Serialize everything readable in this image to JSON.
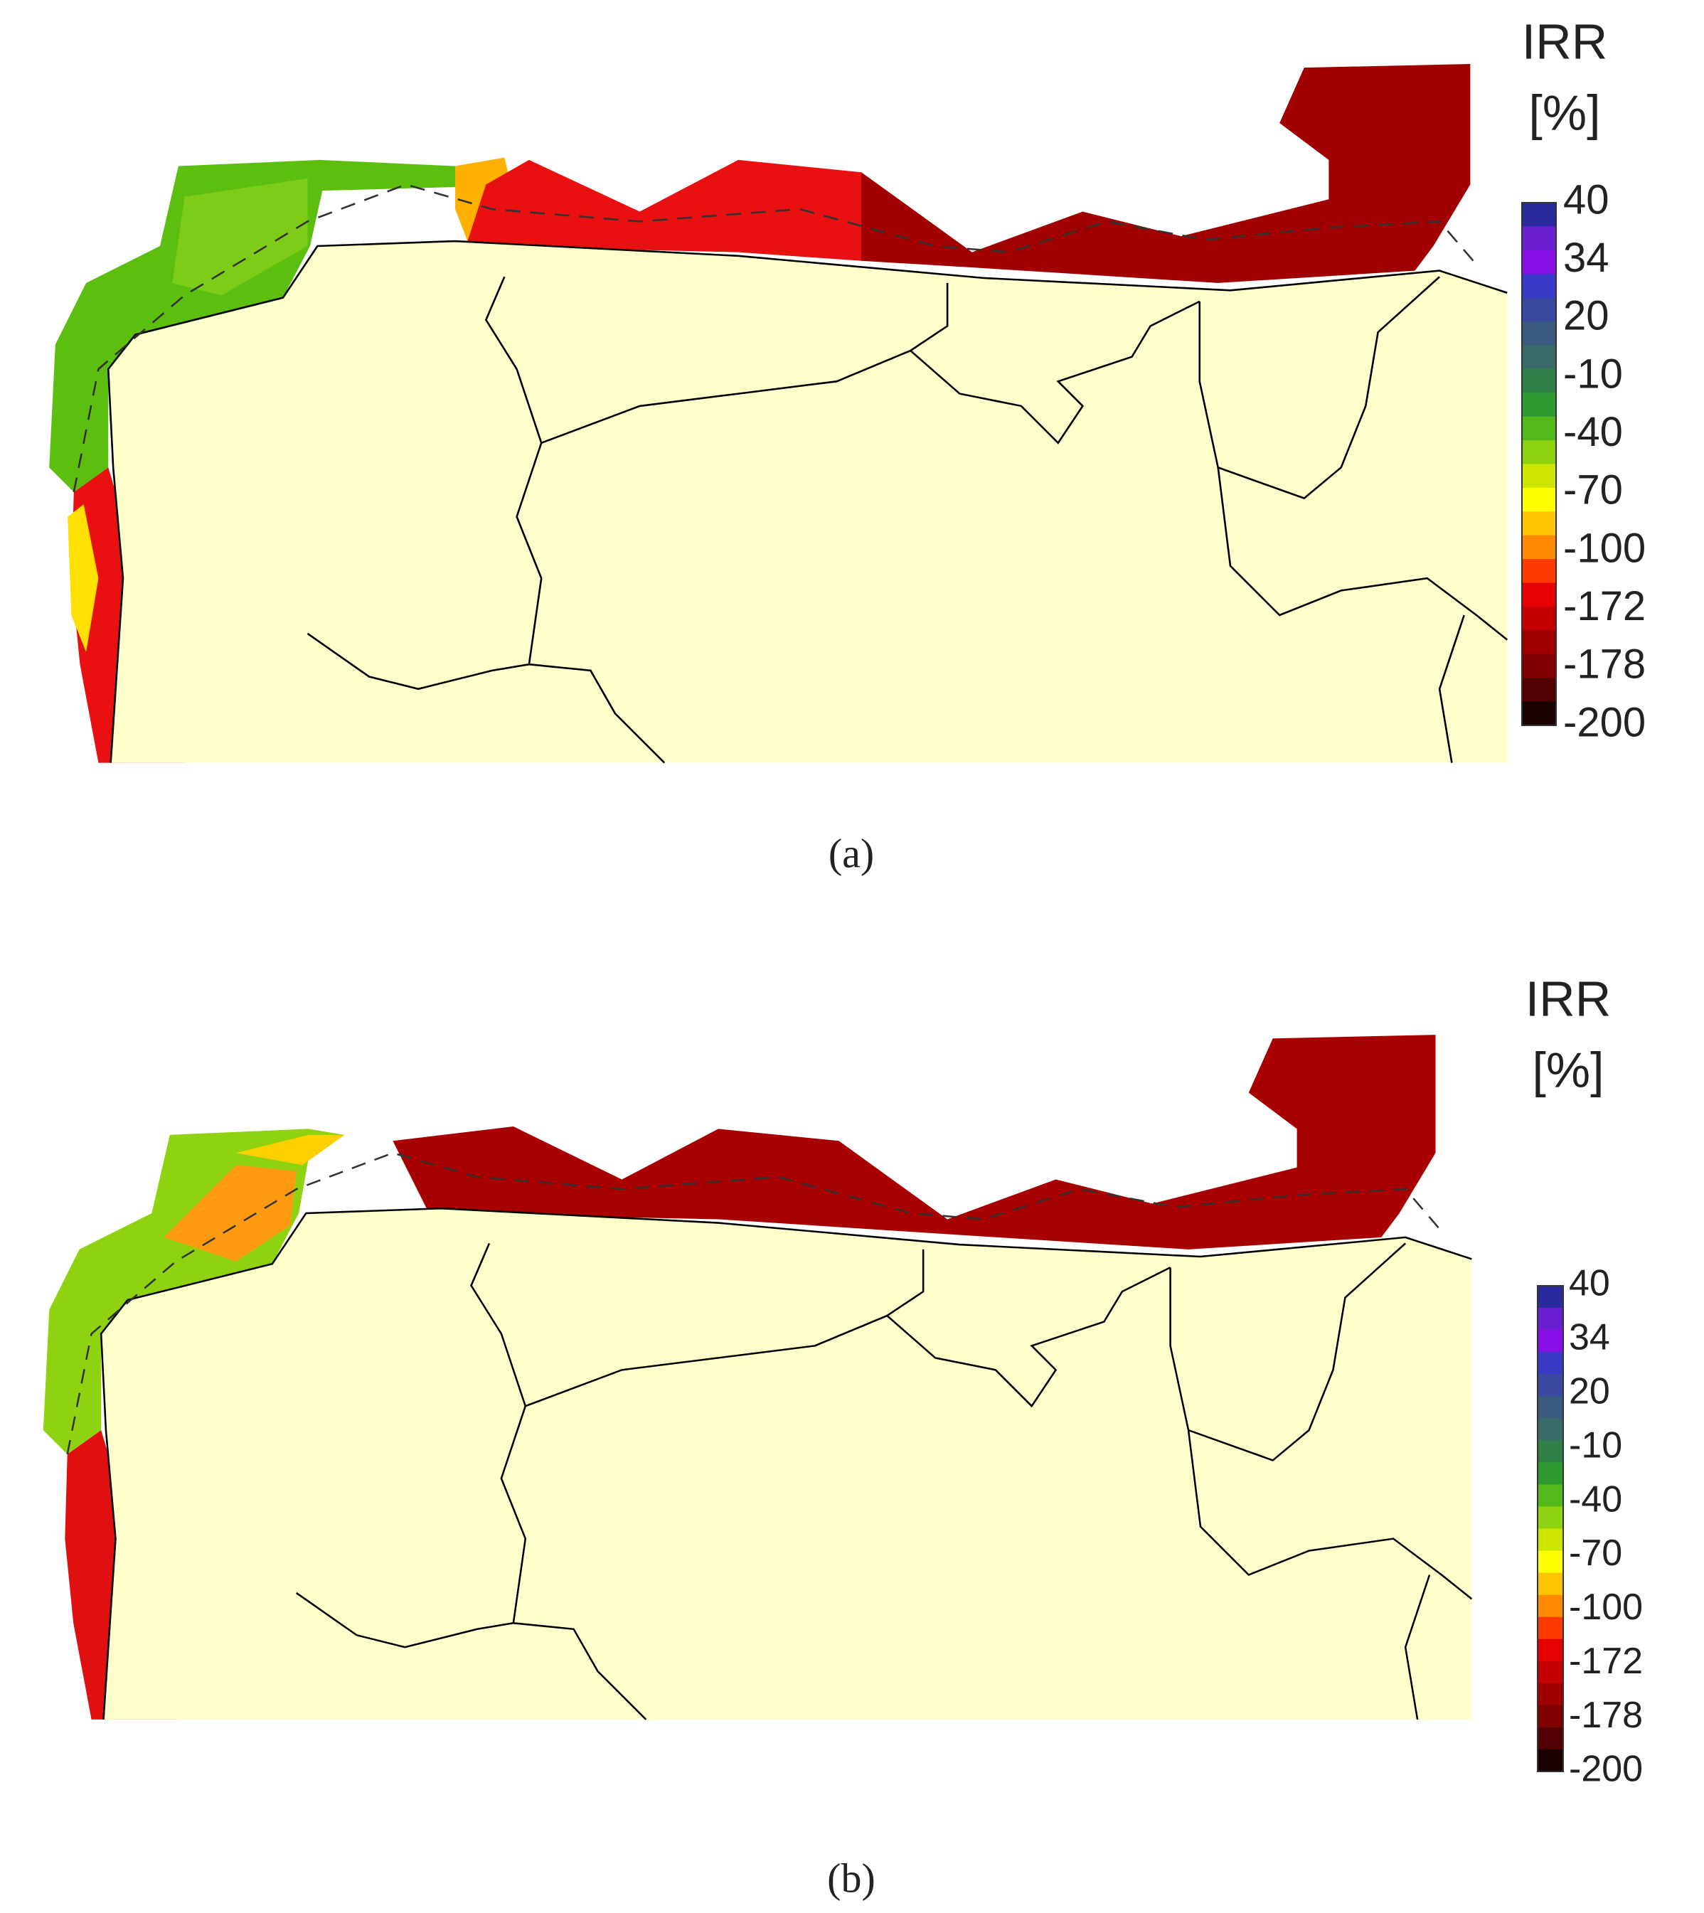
{
  "panels": [
    {
      "caption": "(a)",
      "legend": {
        "title": "IRR",
        "unit": "[%]",
        "labels": [
          40,
          34,
          20,
          -10,
          -40,
          -70,
          -100,
          -172,
          -178,
          -200
        ],
        "colors": [
          "#2a2a9c",
          "#6a1fd0",
          "#8a10e8",
          "#3a3ac8",
          "#3a4aa0",
          "#3a5a80",
          "#3a6a68",
          "#2f7f48",
          "#2f9a30",
          "#52b81c",
          "#8ed210",
          "#cce600",
          "#ffff00",
          "#ffc400",
          "#ff8a00",
          "#ff3a00",
          "#e60000",
          "#c40000",
          "#a00000",
          "#800000",
          "#500000",
          "#1a0000"
        ]
      }
    },
    {
      "caption": "(b)",
      "legend": {
        "title": "IRR",
        "unit": "[%]",
        "labels": [
          40,
          34,
          20,
          -10,
          -40,
          -70,
          -100,
          -172,
          -178,
          -200
        ],
        "colors": [
          "#2a2a9c",
          "#6a1fd0",
          "#8a10e8",
          "#3a3ac8",
          "#3a4aa0",
          "#3a5a80",
          "#3a6a68",
          "#2f7f48",
          "#2f9a30",
          "#52b81c",
          "#8ed210",
          "#cce600",
          "#ffff00",
          "#ffc400",
          "#ff8a00",
          "#ff3a00",
          "#e60000",
          "#c40000",
          "#a00000",
          "#800000",
          "#500000",
          "#1a0000"
        ]
      }
    }
  ]
}
